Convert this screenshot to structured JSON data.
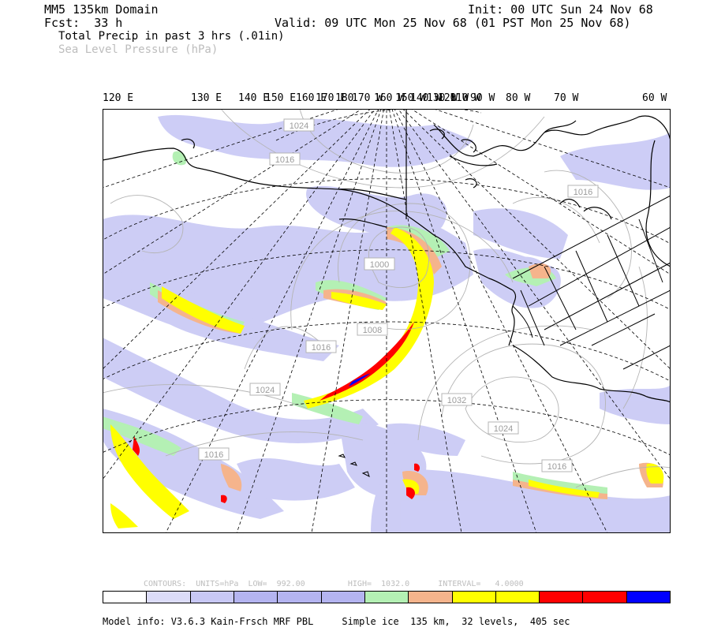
{
  "header": {
    "domain": "MM5 135km Domain",
    "init": "Init: 00 UTC Sun 24 Nov 68",
    "fcst": "Fcst:  33 h",
    "valid": "Valid: 09 UTC Mon 25 Nov 68 (01 PST Mon 25 Nov 68)",
    "field1": "Total Precip in past 3 hrs (.01in)",
    "field2": "Sea Level Pressure (hPa)"
  },
  "longitude_labels": [
    "120 E",
    "130 E",
    "140 E",
    "150 E",
    "160 E",
    "170 E",
    "180",
    "170 W",
    "160 W",
    "150 W",
    "140 W",
    "130 W",
    "120 W",
    "110 W",
    "100 W",
    "90 W",
    "80 W",
    "70 W",
    "60 W"
  ],
  "isobar_labels": [
    "1024",
    "1016",
    "1016",
    "1000",
    "1008",
    "1016",
    "1024",
    "1032",
    "1024",
    "1016",
    "1016"
  ],
  "legend": {
    "contours_text": "CONTOURS:  UNITS=hPa  LOW=  992.00         HIGH=  1032.0      INTERVAL=   4.0000",
    "colors": [
      "#ffffff",
      "#dcdcf8",
      "#c8c8f5",
      "#b4b4f0",
      "#b4b4f0",
      "#b4b4f0",
      "#b4f0b4",
      "#f5b48c",
      "#ffff00",
      "#ffff00",
      "#ff0000",
      "#ff0000",
      "#0000ff"
    ]
  },
  "model_info": "Model info: V3.6.3 Kain-Frsch MRF PBL     Simple ice  135 km,  32 levels,  405 sec",
  "colors": {
    "lavender": "#c8c8f5",
    "green": "#b4f0b4",
    "orange": "#f5b48c",
    "yellow": "#ffff00",
    "red": "#ff0000",
    "blue": "#0000ff"
  }
}
